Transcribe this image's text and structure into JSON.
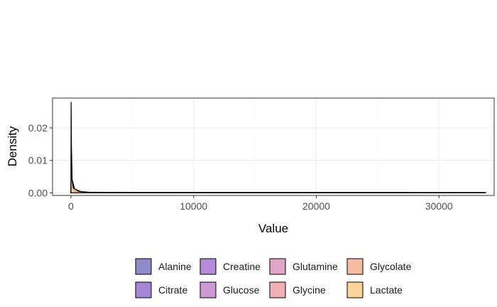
{
  "chart_data": {
    "type": "area",
    "subtype": "density",
    "xlabel": "Value",
    "ylabel": "Density",
    "xlim": [
      -1500,
      34500
    ],
    "ylim": [
      -0.0008,
      0.0292
    ],
    "x_ticks": [
      0,
      10000,
      20000,
      30000
    ],
    "x_tick_labels": [
      "0",
      "10000",
      "20000",
      "30000"
    ],
    "y_ticks": [
      0.0,
      0.01,
      0.02
    ],
    "y_tick_labels": [
      "0.00",
      "0.01",
      "0.02"
    ],
    "grid": true,
    "legend_position": "bottom",
    "series": [
      {
        "name": "Alanine",
        "color": "#8a86c6",
        "points": [
          [
            0,
            0
          ],
          [
            20,
            0.003
          ],
          [
            60,
            0.0015
          ],
          [
            200,
            0.0004
          ],
          [
            600,
            0.0001
          ],
          [
            1200,
            0
          ]
        ]
      },
      {
        "name": "Citrate",
        "color": "#a07fd4",
        "points": [
          [
            0,
            0
          ],
          [
            20,
            0.002
          ],
          [
            60,
            0.0012
          ],
          [
            300,
            0.0004
          ],
          [
            900,
            0.0001
          ],
          [
            1500,
            0
          ]
        ]
      },
      {
        "name": "Creatine",
        "color": "#b184d6",
        "points": [
          [
            0,
            0
          ],
          [
            20,
            0.004
          ],
          [
            60,
            0.002
          ],
          [
            200,
            0.0006
          ],
          [
            700,
            0.0002
          ],
          [
            1300,
            0
          ]
        ]
      },
      {
        "name": "Glucose",
        "color": "#c994d1",
        "points": [
          [
            0,
            0
          ],
          [
            15,
            0.028
          ],
          [
            40,
            0.015
          ],
          [
            100,
            0.004
          ],
          [
            300,
            0.0012
          ],
          [
            800,
            0.0004
          ],
          [
            1500,
            0.0002
          ],
          [
            5000,
            0.0001
          ],
          [
            15000,
            0.0001
          ],
          [
            27500,
            0.0001
          ],
          [
            27500,
            0
          ]
        ]
      },
      {
        "name": "Glutamine",
        "color": "#dfa0c6",
        "points": [
          [
            0,
            0
          ],
          [
            20,
            0.0025
          ],
          [
            80,
            0.0012
          ],
          [
            300,
            0.0004
          ],
          [
            900,
            0.0001
          ],
          [
            1500,
            0
          ]
        ]
      },
      {
        "name": "Glycine",
        "color": "#eeacae",
        "points": [
          [
            0,
            0
          ],
          [
            20,
            0.003
          ],
          [
            80,
            0.0014
          ],
          [
            300,
            0.0004
          ],
          [
            800,
            0.0001
          ],
          [
            1400,
            0
          ]
        ]
      },
      {
        "name": "Glycolate",
        "color": "#f5b79e",
        "points": [
          [
            0,
            0
          ],
          [
            20,
            0.0035
          ],
          [
            80,
            0.0015
          ],
          [
            300,
            0.0005
          ],
          [
            900,
            0.0001
          ],
          [
            1500,
            0
          ]
        ]
      },
      {
        "name": "Lactate",
        "color": "#fbd093",
        "points": [
          [
            0,
            0
          ],
          [
            10,
            0.0135
          ],
          [
            30,
            0.009
          ],
          [
            80,
            0.004
          ],
          [
            200,
            0.0015
          ],
          [
            600,
            0.0005
          ],
          [
            1200,
            0.0002
          ],
          [
            2000,
            0.0001
          ],
          [
            32000,
            0.0001
          ],
          [
            33800,
            0.0001
          ],
          [
            33800,
            0
          ]
        ]
      }
    ]
  }
}
